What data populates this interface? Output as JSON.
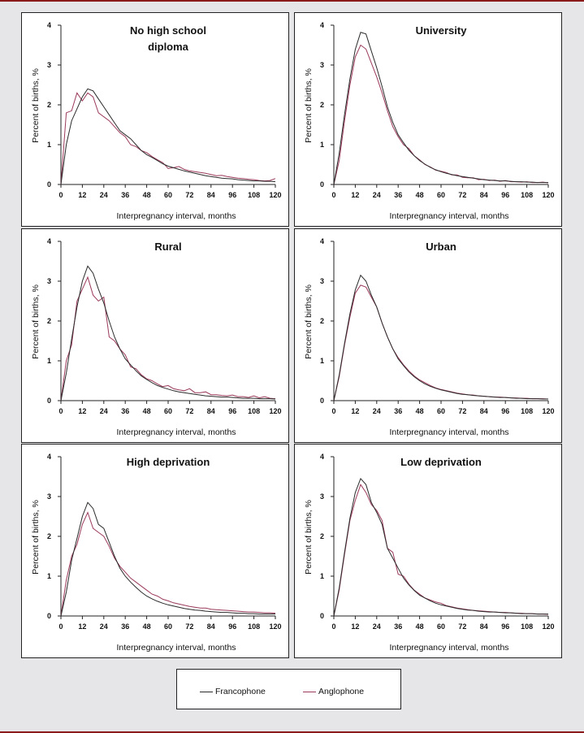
{
  "colors": {
    "francophone": "#2b2b2b",
    "anglophone": "#9b3a5a",
    "rule": "#8b1a1a"
  },
  "legend": {
    "francophone": "Francophone",
    "anglophone": "Anglophone"
  },
  "chart_data": {
    "type": "line",
    "xlabel": "Interpregnancy interval, months",
    "ylabel": "Percent of births, %",
    "xlim": [
      0,
      120
    ],
    "ylim": [
      0,
      4
    ],
    "xticks": [
      "0",
      "12",
      "24",
      "36",
      "48",
      "60",
      "72",
      "84",
      "96",
      "108",
      "120"
    ],
    "yticks": [
      "0",
      "1",
      "2",
      "3",
      "4"
    ],
    "x": [
      0,
      3,
      6,
      9,
      12,
      15,
      18,
      21,
      24,
      27,
      30,
      33,
      36,
      39,
      42,
      45,
      48,
      51,
      54,
      57,
      60,
      63,
      66,
      69,
      72,
      75,
      78,
      81,
      84,
      87,
      90,
      93,
      96,
      99,
      102,
      105,
      108,
      111,
      114,
      117,
      120
    ],
    "panels": [
      {
        "title": "No high school diploma",
        "series": [
          {
            "name": "Francophone",
            "values": [
              0,
              1.0,
              1.6,
              1.9,
              2.2,
              2.4,
              2.35,
              2.15,
              1.95,
              1.75,
              1.55,
              1.35,
              1.25,
              1.15,
              1.0,
              0.85,
              0.75,
              0.68,
              0.6,
              0.52,
              0.46,
              0.42,
              0.38,
              0.34,
              0.31,
              0.28,
              0.25,
              0.22,
              0.2,
              0.18,
              0.16,
              0.15,
              0.14,
              0.12,
              0.11,
              0.1,
              0.09,
              0.09,
              0.08,
              0.08,
              0.07
            ]
          },
          {
            "name": "Anglophone",
            "values": [
              0,
              1.8,
              1.85,
              2.3,
              2.1,
              2.3,
              2.2,
              1.8,
              1.7,
              1.6,
              1.45,
              1.3,
              1.2,
              1.0,
              0.95,
              0.85,
              0.8,
              0.7,
              0.62,
              0.55,
              0.4,
              0.42,
              0.45,
              0.38,
              0.34,
              0.32,
              0.3,
              0.28,
              0.25,
              0.22,
              0.23,
              0.2,
              0.18,
              0.16,
              0.15,
              0.13,
              0.12,
              0.1,
              0.09,
              0.1,
              0.15
            ]
          }
        ]
      },
      {
        "title": "University",
        "series": [
          {
            "name": "Francophone",
            "values": [
              0,
              0.78,
              1.76,
              2.65,
              3.39,
              3.82,
              3.78,
              3.35,
              2.93,
              2.46,
              1.95,
              1.56,
              1.25,
              1.05,
              0.86,
              0.72,
              0.6,
              0.51,
              0.43,
              0.37,
              0.32,
              0.28,
              0.25,
              0.22,
              0.2,
              0.18,
              0.16,
              0.14,
              0.12,
              0.11,
              0.1,
              0.09,
              0.09,
              0.08,
              0.07,
              0.07,
              0.06,
              0.06,
              0.05,
              0.05,
              0.05
            ]
          },
          {
            "name": "Anglophone",
            "values": [
              0,
              0.6,
              1.6,
              2.5,
              3.2,
              3.5,
              3.4,
              3.05,
              2.7,
              2.3,
              1.85,
              1.45,
              1.2,
              1.0,
              0.9,
              0.72,
              0.62,
              0.5,
              0.44,
              0.36,
              0.33,
              0.3,
              0.24,
              0.24,
              0.18,
              0.17,
              0.17,
              0.12,
              0.13,
              0.1,
              0.11,
              0.08,
              0.1,
              0.07,
              0.07,
              0.06,
              0.07,
              0.05,
              0.05,
              0.06,
              0.04
            ]
          }
        ]
      },
      {
        "title": "Rural",
        "series": [
          {
            "name": "Francophone",
            "values": [
              0,
              0.69,
              1.55,
              2.35,
              3.0,
              3.38,
              3.2,
              2.8,
              2.45,
              2.0,
              1.6,
              1.3,
              1.05,
              0.9,
              0.75,
              0.62,
              0.53,
              0.45,
              0.38,
              0.33,
              0.29,
              0.25,
              0.22,
              0.2,
              0.18,
              0.16,
              0.14,
              0.12,
              0.11,
              0.1,
              0.09,
              0.09,
              0.08,
              0.07,
              0.06,
              0.06,
              0.06,
              0.05,
              0.05,
              0.05,
              0.04
            ]
          },
          {
            "name": "Anglophone",
            "values": [
              0,
              1.0,
              1.4,
              2.5,
              2.8,
              3.1,
              2.65,
              2.5,
              2.6,
              1.6,
              1.5,
              1.3,
              1.15,
              0.85,
              0.8,
              0.65,
              0.55,
              0.5,
              0.42,
              0.35,
              0.38,
              0.3,
              0.27,
              0.25,
              0.3,
              0.2,
              0.2,
              0.22,
              0.15,
              0.15,
              0.13,
              0.12,
              0.14,
              0.1,
              0.1,
              0.08,
              0.12,
              0.07,
              0.1,
              0.06,
              0.05
            ]
          }
        ]
      },
      {
        "title": "Urban",
        "series": [
          {
            "name": "Francophone",
            "values": [
              0,
              0.64,
              1.44,
              2.18,
              2.78,
              3.15,
              3.0,
              2.65,
              2.35,
              1.95,
              1.6,
              1.3,
              1.05,
              0.88,
              0.72,
              0.6,
              0.5,
              0.42,
              0.36,
              0.31,
              0.27,
              0.24,
              0.21,
              0.18,
              0.16,
              0.15,
              0.13,
              0.12,
              0.11,
              0.1,
              0.09,
              0.08,
              0.08,
              0.07,
              0.06,
              0.06,
              0.05,
              0.05,
              0.05,
              0.04,
              0.04
            ]
          },
          {
            "name": "Anglophone",
            "values": [
              0,
              0.6,
              1.4,
              2.1,
              2.7,
              2.9,
              2.85,
              2.6,
              2.35,
              1.95,
              1.6,
              1.3,
              1.08,
              0.9,
              0.75,
              0.62,
              0.52,
              0.45,
              0.38,
              0.32,
              0.28,
              0.25,
              0.22,
              0.19,
              0.17,
              0.15,
              0.14,
              0.12,
              0.11,
              0.1,
              0.09,
              0.09,
              0.08,
              0.07,
              0.07,
              0.06,
              0.06,
              0.05,
              0.05,
              0.05,
              0.04
            ]
          }
        ]
      },
      {
        "title": "High deprivation",
        "series": [
          {
            "name": "Francophone",
            "values": [
              0,
              0.6,
              1.4,
              1.95,
              2.5,
              2.85,
              2.7,
              2.3,
              2.2,
              1.85,
              1.5,
              1.2,
              1.0,
              0.85,
              0.72,
              0.6,
              0.5,
              0.43,
              0.37,
              0.32,
              0.28,
              0.25,
              0.22,
              0.19,
              0.17,
              0.15,
              0.14,
              0.12,
              0.11,
              0.1,
              0.09,
              0.09,
              0.08,
              0.07,
              0.07,
              0.06,
              0.06,
              0.05,
              0.05,
              0.05,
              0.05
            ]
          },
          {
            "name": "Anglophone",
            "values": [
              0,
              0.9,
              1.5,
              1.8,
              2.3,
              2.6,
              2.2,
              2.1,
              2.0,
              1.75,
              1.45,
              1.25,
              1.1,
              0.95,
              0.85,
              0.75,
              0.65,
              0.55,
              0.5,
              0.42,
              0.38,
              0.33,
              0.3,
              0.27,
              0.24,
              0.22,
              0.2,
              0.2,
              0.17,
              0.16,
              0.15,
              0.14,
              0.13,
              0.12,
              0.11,
              0.1,
              0.1,
              0.09,
              0.08,
              0.08,
              0.07
            ]
          }
        ]
      },
      {
        "title": "Low deprivation",
        "series": [
          {
            "name": "Francophone",
            "values": [
              0,
              0.7,
              1.6,
              2.45,
              3.1,
              3.45,
              3.3,
              2.85,
              2.6,
              2.3,
              1.7,
              1.45,
              1.2,
              0.95,
              0.78,
              0.64,
              0.52,
              0.45,
              0.38,
              0.32,
              0.28,
              0.25,
              0.22,
              0.19,
              0.17,
              0.15,
              0.14,
              0.12,
              0.11,
              0.1,
              0.1,
              0.09,
              0.08,
              0.08,
              0.07,
              0.06,
              0.06,
              0.06,
              0.05,
              0.05,
              0.05
            ]
          },
          {
            "name": "Anglophone",
            "values": [
              0,
              0.65,
              1.55,
              2.4,
              2.9,
              3.3,
              3.1,
              2.8,
              2.65,
              2.4,
              1.7,
              1.6,
              1.05,
              1.0,
              0.8,
              0.65,
              0.55,
              0.45,
              0.4,
              0.35,
              0.32,
              0.26,
              0.23,
              0.2,
              0.18,
              0.16,
              0.14,
              0.13,
              0.12,
              0.11,
              0.1,
              0.09,
              0.09,
              0.08,
              0.07,
              0.07,
              0.06,
              0.06,
              0.05,
              0.05,
              0.04
            ]
          }
        ]
      }
    ]
  }
}
